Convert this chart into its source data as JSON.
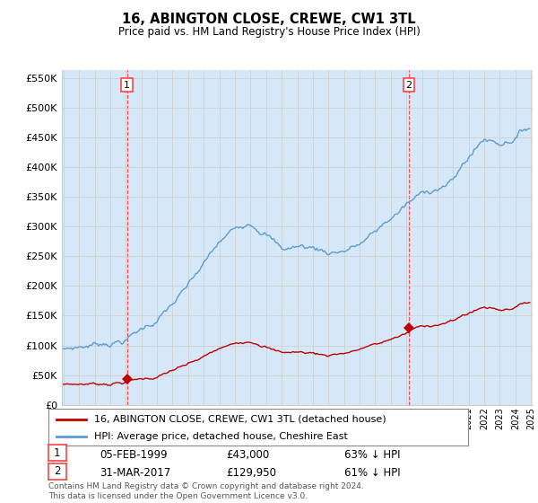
{
  "title": "16, ABINGTON CLOSE, CREWE, CW1 3TL",
  "subtitle": "Price paid vs. HM Land Registry's House Price Index (HPI)",
  "hpi_label": "HPI: Average price, detached house, Cheshire East",
  "price_label": "16, ABINGTON CLOSE, CREWE, CW1 3TL (detached house)",
  "transaction1": {
    "label": "1",
    "date": "05-FEB-1999",
    "price": 43000,
    "note": "63% ↓ HPI"
  },
  "transaction2": {
    "label": "2",
    "date": "31-MAR-2017",
    "price": 129950,
    "note": "61% ↓ HPI"
  },
  "ylim": [
    0,
    562500
  ],
  "yticks": [
    0,
    50000,
    100000,
    150000,
    200000,
    250000,
    300000,
    350000,
    400000,
    450000,
    500000,
    550000
  ],
  "hpi_color": "#5B9BD5",
  "hpi_fill_color": "#D6E8F7",
  "price_color": "#C00000",
  "vline_color": "#FF4444",
  "background_color": "#ffffff",
  "grid_color": "#cccccc",
  "footer": "Contains HM Land Registry data © Crown copyright and database right 2024.\nThis data is licensed under the Open Government Licence v3.0.",
  "x_start_year": 1995,
  "x_end_year": 2025
}
